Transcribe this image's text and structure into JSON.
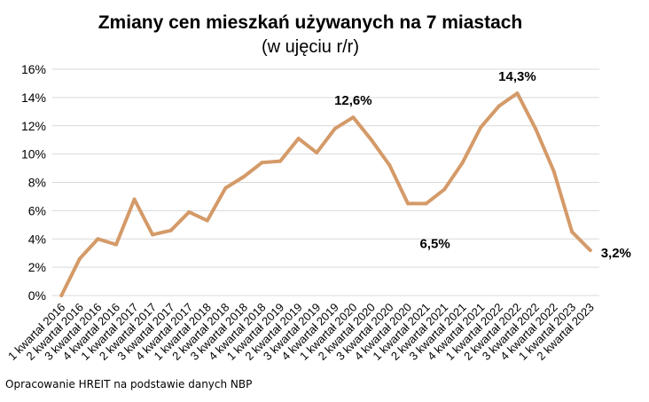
{
  "chart_data": {
    "type": "line",
    "title": "Zmiany cen mieszkań używanych na 7 miastach",
    "subtitle": "(w ujęciu r/r)",
    "xlabel": "",
    "ylabel": "",
    "ylim": [
      0,
      16
    ],
    "y_ticks": [
      0,
      2,
      4,
      6,
      8,
      10,
      12,
      14,
      16
    ],
    "y_tick_labels": [
      "0%",
      "2%",
      "4%",
      "6%",
      "8%",
      "10%",
      "12%",
      "14%",
      "16%"
    ],
    "grid": true,
    "legend": "none",
    "series_color": "#D49A68",
    "categories": [
      "1 kwartał 2016",
      "2 kwartał 2016",
      "3 kwartał 2016",
      "4 kwartał 2016",
      "1 kwartał 2017",
      "2 kwartał 2017",
      "3 kwartał 2017",
      "4 kwartał 2017",
      "1 kwartał 2018",
      "2 kwartał 2018",
      "3 kwartał 2018",
      "4 kwartał 2018",
      "1 kwartał 2019",
      "2 kwartał 2019",
      "3 kwartał 2019",
      "4 kwartał 2019",
      "1 kwartał 2020",
      "2 kwartał 2020",
      "3 kwartał 2020",
      "4 kwartał 2020",
      "1 kwartał 2021",
      "2 kwartał 2021",
      "3 kwartał 2021",
      "4 kwartał 2021",
      "1 kwartał 2022",
      "2 kwartał 2022",
      "3 kwartał 2022",
      "4 kwartał 2022",
      "1 kwartał 2023",
      "2 kwartał 2023"
    ],
    "series": [
      {
        "values": [
          0.0,
          2.6,
          4.0,
          3.6,
          6.8,
          4.3,
          4.6,
          5.9,
          5.3,
          7.6,
          8.4,
          9.4,
          9.5,
          11.1,
          10.1,
          11.8,
          12.6,
          11.0,
          9.2,
          6.5,
          6.5,
          7.5,
          9.4,
          11.9,
          13.4,
          14.3,
          11.8,
          8.8,
          4.5,
          3.2
        ]
      }
    ],
    "annotations": [
      {
        "index": 16,
        "text": "12,6%",
        "position": "above"
      },
      {
        "index": 20,
        "text": "6,5%",
        "position": "below"
      },
      {
        "index": 25,
        "text": "14,3%",
        "position": "above"
      },
      {
        "index": 29,
        "text": "3,2%",
        "position": "right"
      }
    ]
  },
  "footer": {
    "source": "Opracowanie HREIT na podstawie danych NBP"
  }
}
